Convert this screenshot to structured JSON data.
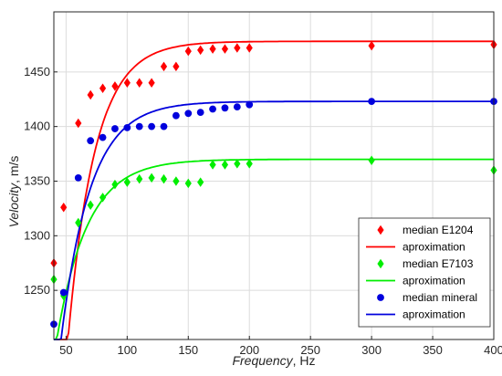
{
  "chart_data": {
    "type": "scatter",
    "xlabel_italic": "Frequency",
    "xlabel_unit": ", Hz",
    "ylabel_italic": "Velocity",
    "ylabel_unit": ", m/s",
    "xlim": [
      40,
      400
    ],
    "ylim": [
      1205,
      1505
    ],
    "xticks": [
      50,
      100,
      150,
      200,
      250,
      300,
      350,
      400
    ],
    "yticks": [
      1250,
      1300,
      1350,
      1400,
      1450
    ],
    "grid": true,
    "legend_position": "bottom-right",
    "colors": {
      "red": "#ff0000",
      "green": "#00ee00",
      "blue": "#0000dd"
    },
    "series": [
      {
        "name": "median E1204",
        "marker": "diamond",
        "color": "red",
        "points": [
          [
            40,
            1275
          ],
          [
            48,
            1326
          ],
          [
            60,
            1403
          ],
          [
            70,
            1429
          ],
          [
            80,
            1435
          ],
          [
            90,
            1437
          ],
          [
            100,
            1440
          ],
          [
            110,
            1440
          ],
          [
            120,
            1440
          ],
          [
            130,
            1455
          ],
          [
            140,
            1455
          ],
          [
            150,
            1469
          ],
          [
            160,
            1470
          ],
          [
            170,
            1471
          ],
          [
            180,
            1471
          ],
          [
            190,
            1472
          ],
          [
            200,
            1472
          ],
          [
            300,
            1474
          ],
          [
            400,
            1475
          ]
        ]
      },
      {
        "name": "aproximation",
        "style": "line",
        "color": "red",
        "fit": {
          "asymptote": 1478,
          "amplitude": 2800,
          "rate": 0.0452
        }
      },
      {
        "name": "median E7103",
        "marker": "diamond",
        "color": "green",
        "points": [
          [
            40,
            1260
          ],
          [
            48,
            1245
          ],
          [
            60,
            1312
          ],
          [
            70,
            1328
          ],
          [
            80,
            1335
          ],
          [
            90,
            1347
          ],
          [
            100,
            1349
          ],
          [
            110,
            1352
          ],
          [
            120,
            1353
          ],
          [
            130,
            1352
          ],
          [
            140,
            1350
          ],
          [
            150,
            1348
          ],
          [
            160,
            1349
          ],
          [
            170,
            1365
          ],
          [
            180,
            1365
          ],
          [
            190,
            1366
          ],
          [
            200,
            1366
          ],
          [
            300,
            1369
          ],
          [
            400,
            1360
          ]
        ]
      },
      {
        "name": "aproximation",
        "style": "line",
        "color": "green",
        "fit": {
          "asymptote": 1370,
          "amplitude": 900,
          "rate": 0.04
        }
      },
      {
        "name": "median mineral",
        "marker": "circle",
        "color": "blue",
        "points": [
          [
            40,
            1219
          ],
          [
            48,
            1248
          ],
          [
            60,
            1353
          ],
          [
            70,
            1387
          ],
          [
            80,
            1390
          ],
          [
            90,
            1398
          ],
          [
            100,
            1399
          ],
          [
            110,
            1400
          ],
          [
            120,
            1400
          ],
          [
            130,
            1400
          ],
          [
            140,
            1410
          ],
          [
            150,
            1412
          ],
          [
            160,
            1413
          ],
          [
            170,
            1416
          ],
          [
            180,
            1417
          ],
          [
            190,
            1418
          ],
          [
            200,
            1420
          ],
          [
            300,
            1423
          ],
          [
            400,
            1423
          ]
        ]
      },
      {
        "name": "aproximation",
        "style": "line",
        "color": "blue",
        "fit": {
          "asymptote": 1423,
          "amplitude": 1500,
          "rate": 0.042
        }
      }
    ]
  }
}
